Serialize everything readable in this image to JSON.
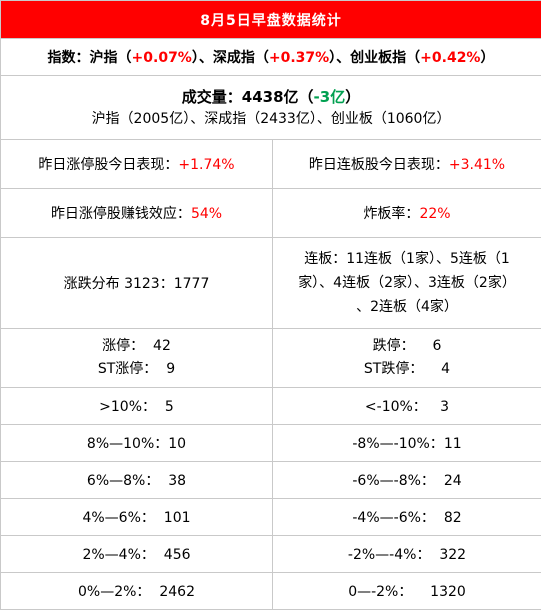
{
  "title": "8月5日早盘数据统计",
  "index_line": {
    "label": "指数：",
    "items": [
      {
        "name": "沪指（",
        "value": "+0.07%",
        "suffix": "）、"
      },
      {
        "name": "深成指（",
        "value": "+0.37%",
        "suffix": "）、"
      },
      {
        "name": "创业板指（",
        "value": "+0.42%",
        "suffix": "）"
      }
    ]
  },
  "volume": {
    "label": "成交量：4438亿（",
    "change": "-3亿",
    "close": "）",
    "detail": "沪指（2005亿）、深成指（2433亿）、创业板（1060亿）"
  },
  "performance": {
    "limit_up_label": "昨日涨停股今日表现：",
    "limit_up_value": "+1.74%",
    "consecutive_label": "昨日连板股今日表现：",
    "consecutive_value": "+3.41%"
  },
  "effect": {
    "money_label": "昨日涨停股赚钱效应：",
    "money_value": "54%",
    "broken_label": "炸板率：",
    "broken_value": "22%"
  },
  "distribution": {
    "text": "涨跌分布 3123：1777",
    "consecutive_lines": [
      "连板：11连板（1家）、5连板（1",
      "家）、4连板（2家）、3连板（2家）",
      "、2连板（4家）"
    ]
  },
  "limits": {
    "up_label": "涨停：",
    "up_value": "42",
    "st_up_label": "ST涨停：",
    "st_up_value": "9",
    "down_label": "跌停：",
    "down_value": "6",
    "st_down_label": "ST跌停：",
    "st_down_value": "4"
  },
  "bands": [
    {
      "up_label": ">10%：",
      "up_value": "5",
      "down_label": "<-10%：",
      "down_value": "3"
    },
    {
      "up_label": "8%—10%：",
      "up_value": "10",
      "down_label": "-8%—-10%：",
      "down_value": "11"
    },
    {
      "up_label": "6%—8%：",
      "up_value": "38",
      "down_label": "-6%—-8%：",
      "down_value": "24"
    },
    {
      "up_label": "4%—6%：",
      "up_value": "101",
      "down_label": "-4%—-6%：",
      "down_value": "82"
    },
    {
      "up_label": "2%—4%：",
      "up_value": "456",
      "down_label": "-2%—-4%：",
      "down_value": "322"
    },
    {
      "up_label": "0%—2%：",
      "up_value": "2462",
      "down_label": "0—-2%：",
      "down_value": "1320"
    }
  ],
  "colors": {
    "header_bg": "#ff0000",
    "up": "#ff0000",
    "down": "#00a050"
  }
}
